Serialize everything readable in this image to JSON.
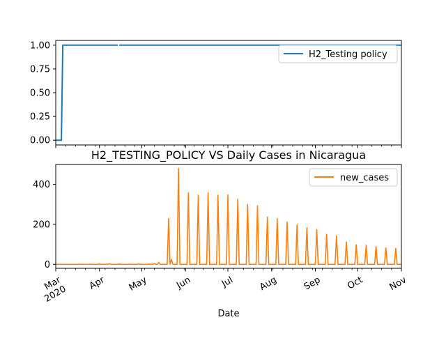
{
  "colors": {
    "testing_policy": "#1f77b4",
    "new_cases": "#ff7f0e",
    "axes": "#000000",
    "background": "#ffffff"
  },
  "chart_data": [
    {
      "type": "line",
      "position": "top",
      "title": "",
      "xlabel": "",
      "ylabel": "",
      "ylim": [
        -0.05,
        1.05
      ],
      "yticks": [
        0.0,
        0.25,
        0.5,
        0.75,
        1.0
      ],
      "ytick_labels": [
        "0.00",
        "0.25",
        "0.50",
        "0.75",
        "1.00"
      ],
      "grid": false,
      "legend": "upper-right",
      "series": [
        {
          "name": "H2_Testing policy",
          "x": [
            "2020-03-01",
            "2020-03-05",
            "2020-03-05",
            "2020-03-06",
            "2020-04-14",
            "2020-04-15",
            "2020-11-01"
          ],
          "y": [
            0,
            0,
            0,
            1,
            1,
            1,
            1
          ]
        }
      ]
    },
    {
      "type": "line",
      "position": "bottom",
      "title": "H2_TESTING_POLICY VS Daily Cases in Nicaragua",
      "xlabel": "Date",
      "ylabel": "",
      "ylim": [
        -20,
        500
      ],
      "yticks": [
        0,
        200,
        400
      ],
      "ytick_labels": [
        "0",
        "200",
        "400"
      ],
      "xlim": [
        "2020-03-01",
        "2020-11-01"
      ],
      "xticks": [
        "2020-03-01",
        "2020-04-01",
        "2020-05-01",
        "2020-06-01",
        "2020-07-01",
        "2020-08-01",
        "2020-09-01",
        "2020-10-01",
        "2020-11-01"
      ],
      "xtick_labels": [
        "Mar\n2020",
        "Apr",
        "May",
        "Jun",
        "Jul",
        "Aug",
        "Sep",
        "Oct",
        "Nov"
      ],
      "grid": false,
      "legend": "upper-right",
      "series": [
        {
          "name": "new_cases",
          "spikes": [
            {
              "date": "2020-05-20",
              "value": 230
            },
            {
              "date": "2020-05-22",
              "value": 25
            },
            {
              "date": "2020-05-27",
              "value": 480
            },
            {
              "date": "2020-06-03",
              "value": 358
            },
            {
              "date": "2020-06-10",
              "value": 346
            },
            {
              "date": "2020-06-17",
              "value": 358
            },
            {
              "date": "2020-06-24",
              "value": 346
            },
            {
              "date": "2020-07-01",
              "value": 348
            },
            {
              "date": "2020-07-08",
              "value": 326
            },
            {
              "date": "2020-07-15",
              "value": 300
            },
            {
              "date": "2020-07-22",
              "value": 293
            },
            {
              "date": "2020-07-29",
              "value": 236
            },
            {
              "date": "2020-08-05",
              "value": 230
            },
            {
              "date": "2020-08-12",
              "value": 212
            },
            {
              "date": "2020-08-19",
              "value": 197
            },
            {
              "date": "2020-08-26",
              "value": 183
            },
            {
              "date": "2020-09-02",
              "value": 174
            },
            {
              "date": "2020-09-09",
              "value": 150
            },
            {
              "date": "2020-09-16",
              "value": 143
            },
            {
              "date": "2020-09-23",
              "value": 112
            },
            {
              "date": "2020-09-30",
              "value": 98
            },
            {
              "date": "2020-10-07",
              "value": 95
            },
            {
              "date": "2020-10-14",
              "value": 89
            },
            {
              "date": "2020-10-21",
              "value": 82
            },
            {
              "date": "2020-10-28",
              "value": 80
            }
          ],
          "small_values": [
            {
              "date": "2020-03-18",
              "value": 1
            },
            {
              "date": "2020-03-25",
              "value": 1
            },
            {
              "date": "2020-04-01",
              "value": 2
            },
            {
              "date": "2020-04-08",
              "value": 3
            },
            {
              "date": "2020-04-15",
              "value": 2
            },
            {
              "date": "2020-04-22",
              "value": 1
            },
            {
              "date": "2020-04-29",
              "value": 3
            },
            {
              "date": "2020-05-06",
              "value": 2
            },
            {
              "date": "2020-05-10",
              "value": 4
            },
            {
              "date": "2020-05-13",
              "value": 10
            }
          ]
        }
      ]
    }
  ]
}
